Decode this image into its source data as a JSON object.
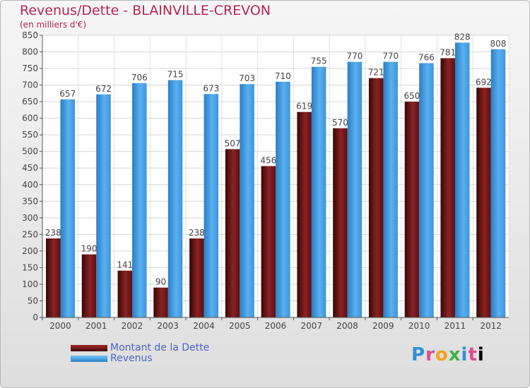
{
  "header": {
    "title": "Revenus/Dette - BLAINVILLE-CREVON",
    "subtitle": "(en milliers d'€)"
  },
  "legend": {
    "items": [
      {
        "label": "Montant de la Dette",
        "color": "#7a1a1a"
      },
      {
        "label": "Revenus",
        "color": "#4aa3e8"
      }
    ]
  },
  "logo": {
    "text": "Proxiti"
  },
  "chart_data": {
    "type": "bar",
    "title": "Revenus/Dette - BLAINVILLE-CREVON",
    "subtitle": "(en milliers d'€)",
    "categories": [
      "2000",
      "2001",
      "2002",
      "2003",
      "2004",
      "2005",
      "2006",
      "2007",
      "2008",
      "2009",
      "2010",
      "2011",
      "2012"
    ],
    "series": [
      {
        "name": "Montant de la Dette",
        "color": "#7a1a1a",
        "values": [
          238,
          190,
          141,
          90,
          238,
          507,
          456,
          619,
          570,
          721,
          650,
          781,
          692
        ]
      },
      {
        "name": "Revenus",
        "color": "#4aa3e8",
        "values": [
          657,
          672,
          706,
          715,
          673,
          703,
          710,
          755,
          770,
          770,
          766,
          828,
          808
        ]
      }
    ],
    "ylim": [
      0,
      850
    ],
    "ytick_step": 50,
    "grid": true,
    "legend_position": "bottom-left"
  }
}
